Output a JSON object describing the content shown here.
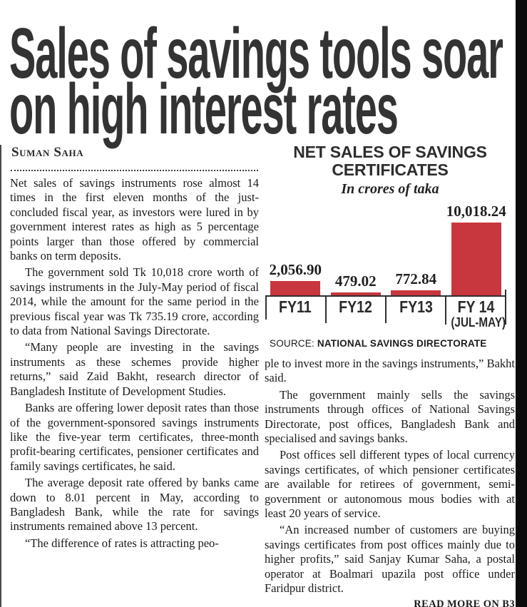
{
  "article": {
    "headline_line1": "Sales of savings tools soar",
    "headline_line2": "on high interest rates",
    "byline": "Suman Saha",
    "left_paragraphs": [
      "Net sales of savings instruments rose almost 14 times in the first eleven months of the just-concluded fiscal year, as investors were lured in by government interest rates as high as 5 percentage points larger than those offered by commercial banks on term deposits.",
      "The government sold Tk 10,018 crore worth of savings instruments in the July-May period of fiscal 2014, while the amount for the same period in the previous fiscal year was Tk 735.19 crore, according to data from National Savings Directorate.",
      "“Many people are investing in the savings instruments as these schemes provide higher returns,” said Zaid Bakht, research director of Bangladesh Institute of Development Studies.",
      "Banks are offering lower deposit rates than those of the government-sponsored savings instruments like the five-year term certificates, three-month profit-bearing certificates, pensioner certificates and family savings certificates, he said.",
      "The average deposit rate offered by banks came down to 8.01 percent in May, according to Bangladesh Bank, while the rate for savings instruments remained above 13 percent.",
      "“The difference of rates is attracting peo-"
    ],
    "right_paragraphs": [
      "ple to invest more in the savings instruments,” Bakht said.",
      "The government mainly sells the savings instruments through offices of National Savings Directorate, post offices, Bangladesh Bank and specialised and savings banks.",
      "Post offices sell different types of local currency savings certificates, of which pensioner certificates are available for retirees of government, semi-government or autonomous mous bodies with at least 20 years of service.",
      "“An increased number of customers are buying savings certificates from post offices mainly due to higher profits,” said Sanjay Kumar Saha, a postal operator at Boalmari upazila post office under Faridpur district."
    ],
    "read_more": "READ MORE ON B3"
  },
  "chart": {
    "title_line1": "NET SALES OF SAVINGS",
    "title_line2": "CERTIFICATES",
    "subtitle": "In crores of taka",
    "x_main": [
      "FY11",
      "FY12",
      "FY13",
      "FY 14"
    ],
    "x_sub": [
      "",
      "",
      "",
      "(JUL-MAY)"
    ],
    "source_prefix": "SOURCE:",
    "source_name": "NATIONAL SAVINGS DIRECTORATE"
  },
  "chart_data": {
    "type": "bar",
    "title": "NET SALES OF SAVINGS CERTIFICATES",
    "subtitle": "In crores of taka",
    "categories": [
      "FY11",
      "FY12",
      "FY13",
      "FY 14 (JUL-MAY)"
    ],
    "values": [
      2056.9,
      479.02,
      772.84,
      10018.24
    ],
    "value_labels": [
      "2,056.90",
      "479.02",
      "772.84",
      "10,018.24"
    ],
    "unit": "crores of taka",
    "bar_color": "#c8373e",
    "axis_color": "#2f2f2f",
    "ylim": [
      0,
      10500
    ],
    "grid": false,
    "legend": false,
    "source": "SOURCE: NATIONAL SAVINGS DIRECTORATE"
  }
}
